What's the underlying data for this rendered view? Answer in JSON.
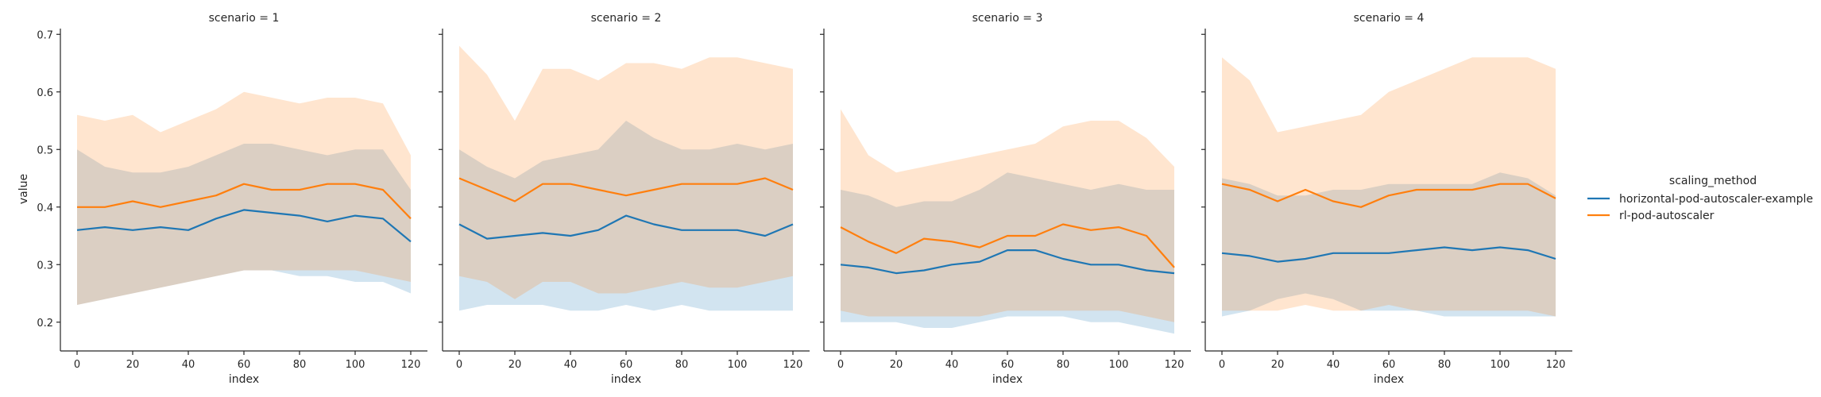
{
  "figure": {
    "xlabel": "index",
    "ylabel": "value",
    "legend": {
      "title": "scaling_method",
      "placement": "right",
      "entries": [
        "horizontal-pod-autoscaler-example",
        "rl-pod-autoscaler"
      ]
    }
  },
  "chart_data": [
    {
      "type": "line",
      "title": "scenario = 1",
      "xlabel": "index",
      "ylabel": "value",
      "xlim": [
        -6,
        126
      ],
      "ylim": [
        0.15,
        0.71
      ],
      "xticks": [
        0,
        20,
        40,
        60,
        80,
        100,
        120
      ],
      "yticks": [
        0.2,
        0.3,
        0.4,
        0.5,
        0.6,
        0.7
      ],
      "x": [
        0,
        10,
        20,
        30,
        40,
        50,
        60,
        70,
        80,
        90,
        100,
        110,
        120
      ],
      "series": [
        {
          "name": "horizontal-pod-autoscaler-example",
          "color": "#1f77b4",
          "mean": [
            0.36,
            0.365,
            0.36,
            0.365,
            0.36,
            0.38,
            0.395,
            0.39,
            0.385,
            0.375,
            0.385,
            0.38,
            0.34
          ],
          "lower": [
            0.23,
            0.24,
            0.25,
            0.26,
            0.27,
            0.28,
            0.29,
            0.29,
            0.28,
            0.28,
            0.27,
            0.27,
            0.25
          ],
          "upper": [
            0.5,
            0.47,
            0.46,
            0.46,
            0.47,
            0.49,
            0.51,
            0.51,
            0.5,
            0.49,
            0.5,
            0.5,
            0.43
          ]
        },
        {
          "name": "rl-pod-autoscaler",
          "color": "#ff7f0e",
          "mean": [
            0.4,
            0.4,
            0.41,
            0.4,
            0.41,
            0.42,
            0.44,
            0.43,
            0.43,
            0.44,
            0.44,
            0.43,
            0.38
          ],
          "lower": [
            0.23,
            0.24,
            0.25,
            0.26,
            0.27,
            0.28,
            0.29,
            0.29,
            0.29,
            0.29,
            0.29,
            0.28,
            0.27
          ],
          "upper": [
            0.56,
            0.55,
            0.56,
            0.53,
            0.55,
            0.57,
            0.6,
            0.59,
            0.58,
            0.59,
            0.59,
            0.58,
            0.49
          ]
        }
      ]
    },
    {
      "type": "line",
      "title": "scenario = 2",
      "xlabel": "index",
      "ylabel": "",
      "xlim": [
        -6,
        126
      ],
      "ylim": [
        0.15,
        0.71
      ],
      "xticks": [
        0,
        20,
        40,
        60,
        80,
        100,
        120
      ],
      "yticks": [
        0.2,
        0.3,
        0.4,
        0.5,
        0.6,
        0.7
      ],
      "x": [
        0,
        10,
        20,
        30,
        40,
        50,
        60,
        70,
        80,
        90,
        100,
        110,
        120
      ],
      "series": [
        {
          "name": "horizontal-pod-autoscaler-example",
          "color": "#1f77b4",
          "mean": [
            0.37,
            0.345,
            0.35,
            0.355,
            0.35,
            0.36,
            0.385,
            0.37,
            0.36,
            0.36,
            0.36,
            0.35,
            0.37
          ],
          "lower": [
            0.22,
            0.23,
            0.23,
            0.23,
            0.22,
            0.22,
            0.23,
            0.22,
            0.23,
            0.22,
            0.22,
            0.22,
            0.22
          ],
          "upper": [
            0.5,
            0.47,
            0.45,
            0.48,
            0.49,
            0.5,
            0.55,
            0.52,
            0.5,
            0.5,
            0.51,
            0.5,
            0.51
          ]
        },
        {
          "name": "rl-pod-autoscaler",
          "color": "#ff7f0e",
          "mean": [
            0.45,
            0.43,
            0.41,
            0.44,
            0.44,
            0.43,
            0.42,
            0.43,
            0.44,
            0.44,
            0.44,
            0.45,
            0.43
          ],
          "lower": [
            0.28,
            0.27,
            0.24,
            0.27,
            0.27,
            0.25,
            0.25,
            0.26,
            0.27,
            0.26,
            0.26,
            0.27,
            0.28
          ],
          "upper": [
            0.68,
            0.63,
            0.55,
            0.64,
            0.64,
            0.62,
            0.65,
            0.65,
            0.64,
            0.66,
            0.66,
            0.65,
            0.64
          ]
        }
      ]
    },
    {
      "type": "line",
      "title": "scenario = 3",
      "xlabel": "index",
      "ylabel": "",
      "xlim": [
        -6,
        126
      ],
      "ylim": [
        0.15,
        0.71
      ],
      "xticks": [
        0,
        20,
        40,
        60,
        80,
        100,
        120
      ],
      "yticks": [
        0.2,
        0.3,
        0.4,
        0.5,
        0.6,
        0.7
      ],
      "x": [
        0,
        10,
        20,
        30,
        40,
        50,
        60,
        70,
        80,
        90,
        100,
        110,
        120
      ],
      "series": [
        {
          "name": "horizontal-pod-autoscaler-example",
          "color": "#1f77b4",
          "mean": [
            0.3,
            0.295,
            0.285,
            0.29,
            0.3,
            0.305,
            0.325,
            0.325,
            0.31,
            0.3,
            0.3,
            0.29,
            0.285
          ],
          "lower": [
            0.2,
            0.2,
            0.2,
            0.19,
            0.19,
            0.2,
            0.21,
            0.21,
            0.21,
            0.2,
            0.2,
            0.19,
            0.18
          ],
          "upper": [
            0.43,
            0.42,
            0.4,
            0.41,
            0.41,
            0.43,
            0.46,
            0.45,
            0.44,
            0.43,
            0.44,
            0.43,
            0.43
          ]
        },
        {
          "name": "rl-pod-autoscaler",
          "color": "#ff7f0e",
          "mean": [
            0.365,
            0.34,
            0.32,
            0.345,
            0.34,
            0.33,
            0.35,
            0.35,
            0.37,
            0.36,
            0.365,
            0.35,
            0.295
          ],
          "lower": [
            0.22,
            0.21,
            0.21,
            0.21,
            0.21,
            0.21,
            0.22,
            0.22,
            0.22,
            0.22,
            0.22,
            0.21,
            0.2
          ],
          "upper": [
            0.57,
            0.49,
            0.46,
            0.47,
            0.48,
            0.49,
            0.5,
            0.51,
            0.54,
            0.55,
            0.55,
            0.52,
            0.47
          ]
        }
      ]
    },
    {
      "type": "line",
      "title": "scenario = 4",
      "xlabel": "index",
      "ylabel": "",
      "xlim": [
        -6,
        126
      ],
      "ylim": [
        0.15,
        0.71
      ],
      "xticks": [
        0,
        20,
        40,
        60,
        80,
        100,
        120
      ],
      "yticks": [
        0.2,
        0.3,
        0.4,
        0.5,
        0.6,
        0.7
      ],
      "x": [
        0,
        10,
        20,
        30,
        40,
        50,
        60,
        70,
        80,
        90,
        100,
        110,
        120
      ],
      "series": [
        {
          "name": "horizontal-pod-autoscaler-example",
          "color": "#1f77b4",
          "mean": [
            0.32,
            0.315,
            0.305,
            0.31,
            0.32,
            0.32,
            0.32,
            0.325,
            0.33,
            0.325,
            0.33,
            0.325,
            0.31
          ],
          "lower": [
            0.21,
            0.22,
            0.24,
            0.25,
            0.24,
            0.22,
            0.22,
            0.22,
            0.21,
            0.21,
            0.21,
            0.21,
            0.21
          ],
          "upper": [
            0.45,
            0.44,
            0.42,
            0.42,
            0.43,
            0.43,
            0.44,
            0.44,
            0.44,
            0.44,
            0.46,
            0.45,
            0.42
          ]
        },
        {
          "name": "rl-pod-autoscaler",
          "color": "#ff7f0e",
          "mean": [
            0.44,
            0.43,
            0.41,
            0.43,
            0.41,
            0.4,
            0.42,
            0.43,
            0.43,
            0.43,
            0.44,
            0.44,
            0.415
          ],
          "lower": [
            0.22,
            0.22,
            0.22,
            0.23,
            0.22,
            0.22,
            0.23,
            0.22,
            0.22,
            0.22,
            0.22,
            0.22,
            0.21
          ],
          "upper": [
            0.66,
            0.62,
            0.53,
            0.54,
            0.55,
            0.56,
            0.6,
            0.62,
            0.64,
            0.66,
            0.66,
            0.66,
            0.64
          ]
        }
      ]
    }
  ]
}
